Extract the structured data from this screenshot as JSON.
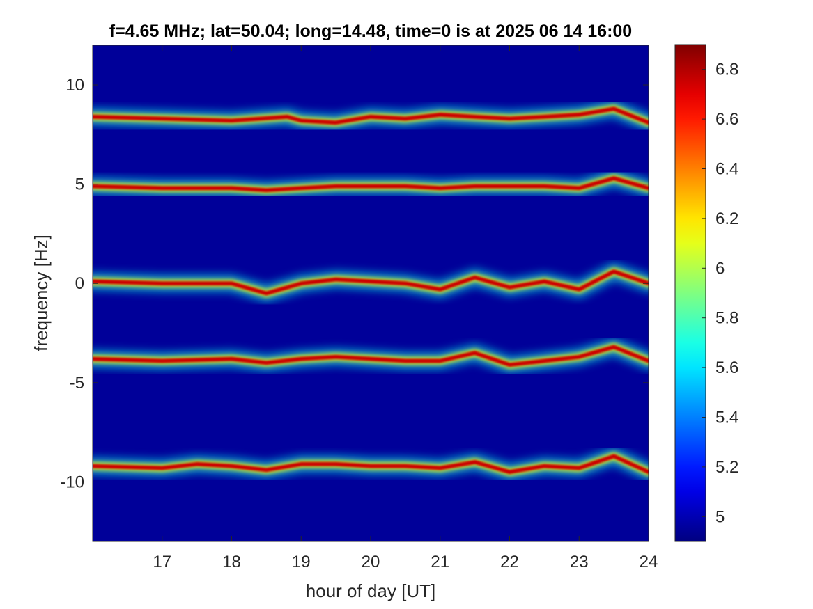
{
  "chart_data": {
    "type": "heatmap",
    "title": "f=4.65 MHz;  lat=50.04; long=14.48, time=0 is at 2025 06 14 16:00",
    "xlabel": "hour of day [UT]",
    "ylabel": "frequency [Hz]",
    "xlim": [
      16,
      24
    ],
    "ylim": [
      -13,
      12
    ],
    "x_ticks": [
      17,
      18,
      19,
      20,
      21,
      22,
      23,
      24
    ],
    "y_ticks": [
      -10,
      -5,
      0,
      5,
      10
    ],
    "colorbar": {
      "clim": [
        4.9,
        6.9
      ],
      "ticks": [
        5,
        5.2,
        5.4,
        5.6,
        5.8,
        6,
        6.2,
        6.4,
        6.6,
        6.8
      ],
      "colormap": "jet"
    },
    "background_level": 4.95,
    "series": [
      {
        "values": [
          [
            16.0,
            8.4
          ],
          [
            17.0,
            8.3
          ],
          [
            18.0,
            8.2
          ],
          [
            18.8,
            8.4
          ],
          [
            19.0,
            8.2
          ],
          [
            19.5,
            8.1
          ],
          [
            20.0,
            8.4
          ],
          [
            20.5,
            8.3
          ],
          [
            21.0,
            8.5
          ],
          [
            21.5,
            8.4
          ],
          [
            22.0,
            8.3
          ],
          [
            22.5,
            8.4
          ],
          [
            23.0,
            8.5
          ],
          [
            23.5,
            8.8
          ],
          [
            24.0,
            8.1
          ]
        ]
      },
      {
        "values": [
          [
            16.0,
            4.9
          ],
          [
            17.0,
            4.8
          ],
          [
            18.0,
            4.8
          ],
          [
            18.5,
            4.7
          ],
          [
            19.0,
            4.8
          ],
          [
            19.5,
            4.9
          ],
          [
            20.0,
            4.9
          ],
          [
            20.5,
            4.9
          ],
          [
            21.0,
            4.8
          ],
          [
            21.5,
            4.9
          ],
          [
            22.0,
            4.9
          ],
          [
            22.5,
            4.9
          ],
          [
            23.0,
            4.8
          ],
          [
            23.5,
            5.3
          ],
          [
            24.0,
            4.8
          ]
        ]
      },
      {
        "values": [
          [
            16.0,
            0.1
          ],
          [
            17.0,
            0.0
          ],
          [
            18.0,
            0.0
          ],
          [
            18.5,
            -0.5
          ],
          [
            19.0,
            0.0
          ],
          [
            19.5,
            0.2
          ],
          [
            20.0,
            0.1
          ],
          [
            20.5,
            0.0
          ],
          [
            21.0,
            -0.3
          ],
          [
            21.5,
            0.3
          ],
          [
            22.0,
            -0.2
          ],
          [
            22.5,
            0.1
          ],
          [
            23.0,
            -0.3
          ],
          [
            23.5,
            0.6
          ],
          [
            24.0,
            0.0
          ]
        ]
      },
      {
        "values": [
          [
            16.0,
            -3.8
          ],
          [
            17.0,
            -3.9
          ],
          [
            18.0,
            -3.8
          ],
          [
            18.5,
            -4.0
          ],
          [
            19.0,
            -3.8
          ],
          [
            19.5,
            -3.7
          ],
          [
            20.0,
            -3.8
          ],
          [
            20.5,
            -3.9
          ],
          [
            21.0,
            -3.9
          ],
          [
            21.5,
            -3.5
          ],
          [
            22.0,
            -4.1
          ],
          [
            22.5,
            -3.9
          ],
          [
            23.0,
            -3.7
          ],
          [
            23.5,
            -3.2
          ],
          [
            24.0,
            -3.9
          ]
        ]
      },
      {
        "values": [
          [
            16.0,
            -9.2
          ],
          [
            17.0,
            -9.3
          ],
          [
            17.5,
            -9.1
          ],
          [
            18.0,
            -9.2
          ],
          [
            18.5,
            -9.4
          ],
          [
            19.0,
            -9.1
          ],
          [
            19.5,
            -9.1
          ],
          [
            20.0,
            -9.2
          ],
          [
            20.5,
            -9.2
          ],
          [
            21.0,
            -9.3
          ],
          [
            21.5,
            -9.0
          ],
          [
            22.0,
            -9.5
          ],
          [
            22.5,
            -9.2
          ],
          [
            23.0,
            -9.3
          ],
          [
            23.5,
            -8.7
          ],
          [
            24.0,
            -9.5
          ]
        ]
      }
    ]
  }
}
